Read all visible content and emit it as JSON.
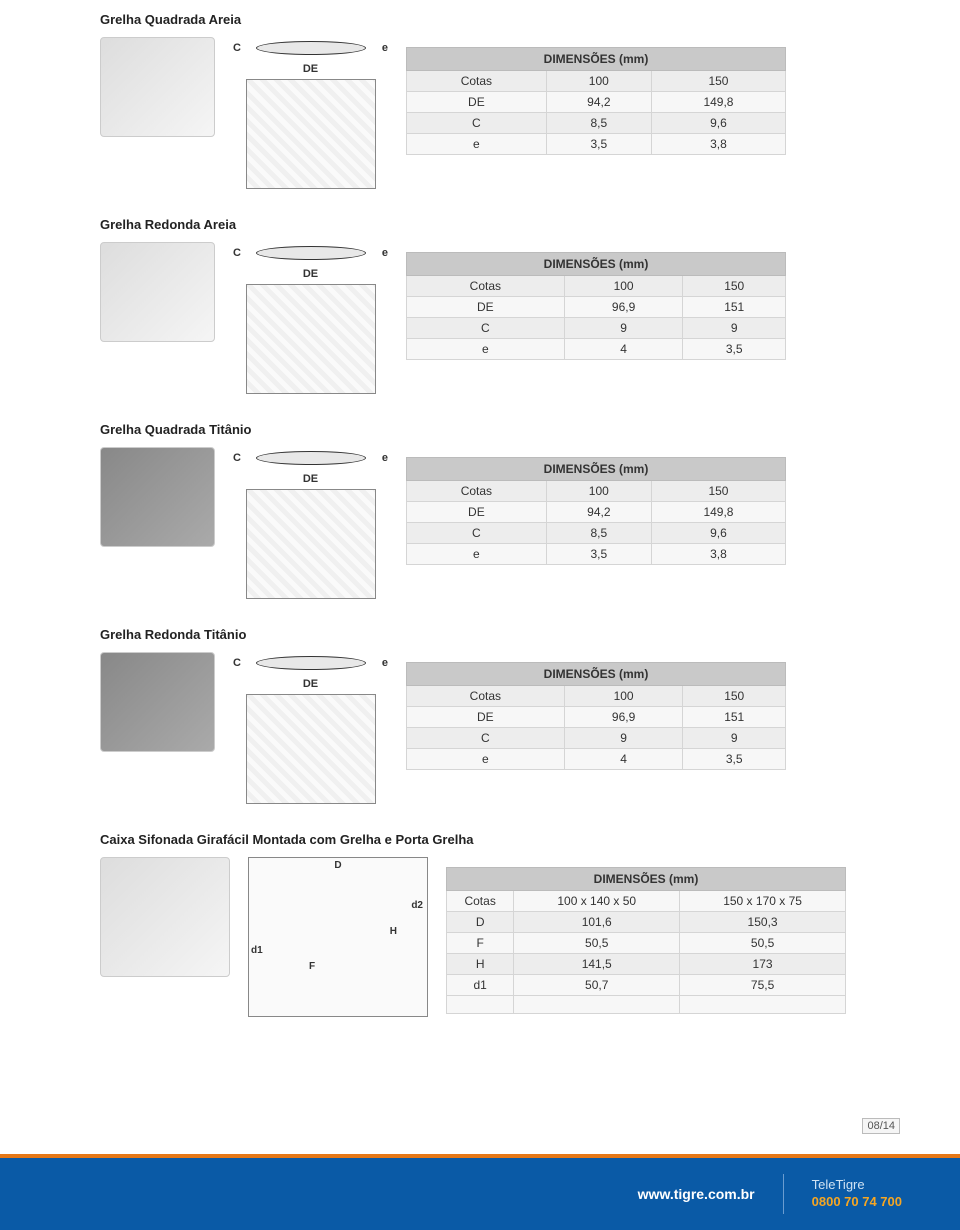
{
  "sections": [
    {
      "title": "Grelha Quadrada Areia",
      "dark": false,
      "header": "DIMENSÕES (mm)",
      "labels": {
        "c": "C",
        "de": "DE",
        "e": "e"
      },
      "rows": [
        {
          "k": "Cotas",
          "v1": "100",
          "v2": "150"
        },
        {
          "k": "DE",
          "v1": "94,2",
          "v2": "149,8"
        },
        {
          "k": "C",
          "v1": "8,5",
          "v2": "9,6"
        },
        {
          "k": "e",
          "v1": "3,5",
          "v2": "3,8"
        }
      ]
    },
    {
      "title": "Grelha Redonda Areia",
      "dark": false,
      "header": "DIMENSÕES (mm)",
      "labels": {
        "c": "C",
        "de": "DE",
        "e": "e"
      },
      "rows": [
        {
          "k": "Cotas",
          "v1": "100",
          "v2": "150"
        },
        {
          "k": "DE",
          "v1": "96,9",
          "v2": "151"
        },
        {
          "k": "C",
          "v1": "9",
          "v2": "9"
        },
        {
          "k": "e",
          "v1": "4",
          "v2": "3,5"
        }
      ]
    },
    {
      "title": "Grelha Quadrada Titânio",
      "dark": true,
      "header": "DIMENSÕES (mm)",
      "labels": {
        "c": "C",
        "de": "DE",
        "e": "e"
      },
      "rows": [
        {
          "k": "Cotas",
          "v1": "100",
          "v2": "150"
        },
        {
          "k": "DE",
          "v1": "94,2",
          "v2": "149,8"
        },
        {
          "k": "C",
          "v1": "8,5",
          "v2": "9,6"
        },
        {
          "k": "e",
          "v1": "3,5",
          "v2": "3,8"
        }
      ]
    },
    {
      "title": "Grelha Redonda Titânio",
      "dark": true,
      "header": "DIMENSÕES (mm)",
      "labels": {
        "c": "C",
        "de": "DE",
        "e": "e"
      },
      "rows": [
        {
          "k": "Cotas",
          "v1": "100",
          "v2": "150"
        },
        {
          "k": "DE",
          "v1": "96,9",
          "v2": "151"
        },
        {
          "k": "C",
          "v1": "9",
          "v2": "9"
        },
        {
          "k": "e",
          "v1": "4",
          "v2": "3,5"
        }
      ]
    }
  ],
  "section5": {
    "title": "Caixa Sifonada Girafácil Montada com Grelha e Porta Grelha",
    "header": "DIMENSÕES (mm)",
    "labels": {
      "d": "D",
      "f": "F",
      "h": "H",
      "d1": "d1",
      "d2": "d2"
    },
    "rows": [
      {
        "k": "Cotas",
        "v1": "100 x 140 x 50",
        "v2": "150 x 170 x 75"
      },
      {
        "k": "D",
        "v1": "101,6",
        "v2": "150,3"
      },
      {
        "k": "F",
        "v1": "50,5",
        "v2": "50,5"
      },
      {
        "k": "H",
        "v1": "141,5",
        "v2": "173"
      },
      {
        "k": "d1",
        "v1": "50,7",
        "v2": "75,5"
      }
    ]
  },
  "footer": {
    "url": "www.tigre.com.br",
    "brand": "TeleTigre",
    "phone": "0800 70 74 700"
  },
  "page_num": "08/14",
  "colors": {
    "header_bg": "#c9c9c9",
    "row_alt_bg": "#ededed",
    "footer_blue": "#0a5aa6",
    "footer_orange": "#e67817",
    "phone_color": "#f5a623"
  }
}
